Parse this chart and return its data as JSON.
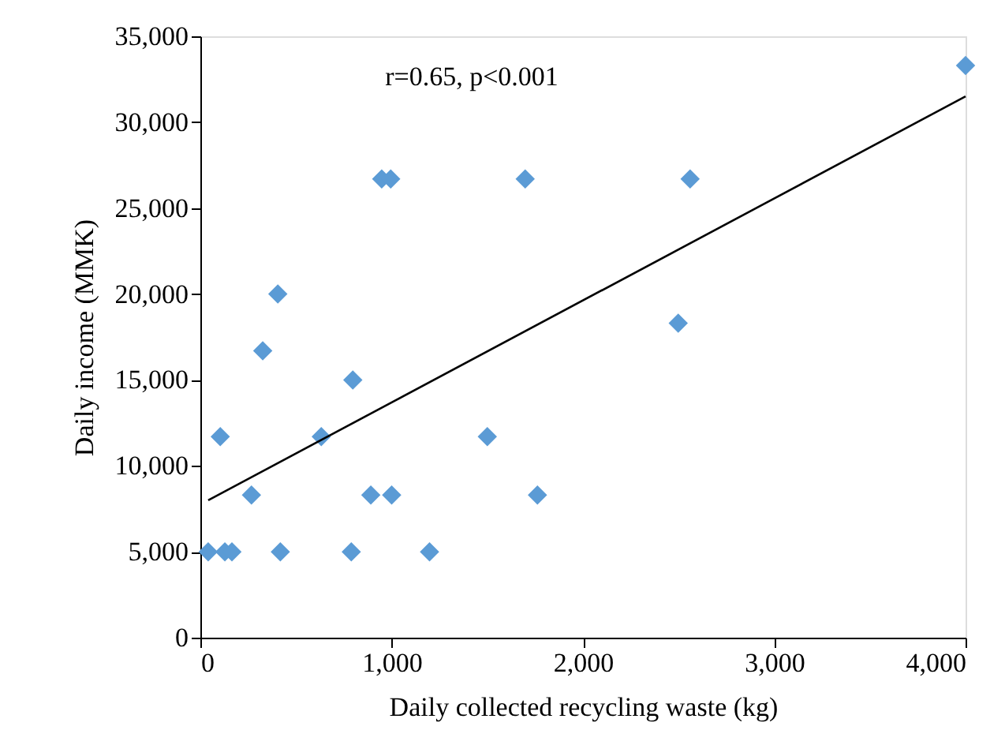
{
  "chart_data": {
    "type": "scatter",
    "xlabel": "Daily collected recycling waste (kg)",
    "ylabel": "Daily income (MMK)",
    "annotations": [
      "r=0.65, p<0.001"
    ],
    "xlim": [
      0,
      4000
    ],
    "xticks": [
      0,
      {
        "value": 1000,
        "label": "1,000"
      },
      {
        "value": 2000,
        "label": "2,000"
      },
      {
        "value": 3000,
        "label": "3,000"
      },
      {
        "value": 4000,
        "label": "4,000"
      }
    ],
    "ylim": [
      0,
      35000
    ],
    "yticks": [
      0,
      {
        "value": 5000,
        "label": "5,000"
      },
      {
        "value": 10000,
        "label": "10,000"
      },
      {
        "value": 15000,
        "label": "15,000"
      },
      {
        "value": 20000,
        "label": "20,000"
      },
      {
        "value": 25000,
        "label": "25,000"
      },
      {
        "value": 30000,
        "label": "30,000"
      },
      {
        "value": 35000,
        "label": "35,000"
      }
    ],
    "grid": false,
    "series": [
      {
        "type": "scatter",
        "marker": "diamond",
        "color": "#5b9bd5",
        "x": [
          41,
          128,
          165,
          104,
          267,
          326,
          405,
          418,
          632,
          797,
          789,
          891,
          948,
          995,
          1000,
          1198,
          1500,
          1698,
          1762,
          2560,
          2498,
          4000
        ],
        "values": [
          5000,
          5000,
          5000,
          11700,
          8300,
          16700,
          20000,
          5000,
          11700,
          15000,
          5000,
          8300,
          26700,
          26700,
          8300,
          5000,
          11700,
          26700,
          8300,
          26700,
          18300,
          33300
        ]
      },
      {
        "type": "line",
        "marker": "none",
        "line_style": "solid",
        "color": "#000000",
        "x": [
          41,
          4000
        ],
        "values": [
          8000,
          31500
        ]
      }
    ]
  }
}
